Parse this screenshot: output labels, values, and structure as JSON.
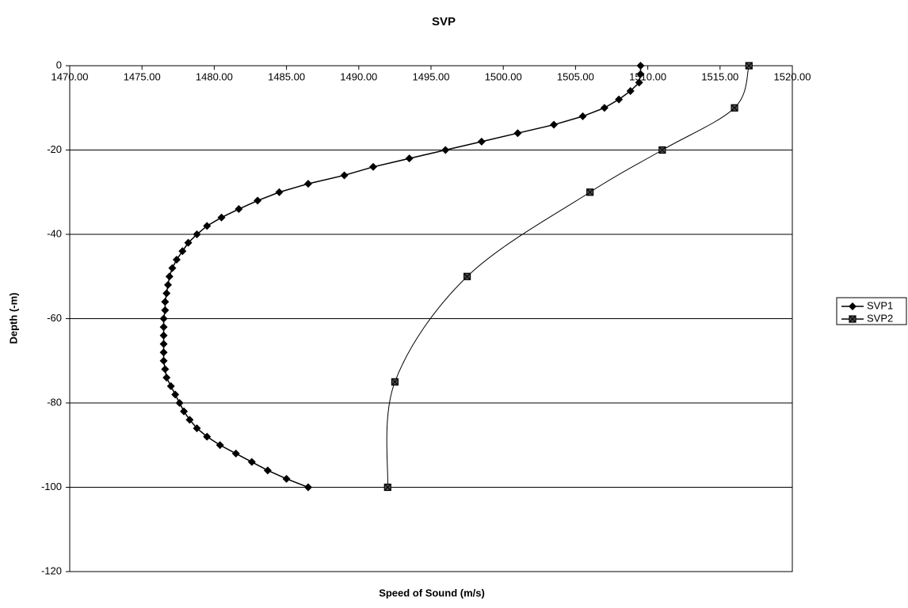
{
  "chart_data": {
    "type": "line",
    "title": "SVP",
    "x_label": "Speed of Sound (m/s)",
    "y_label": "Depth (-m)",
    "xlim": [
      1470,
      1520
    ],
    "xticks": [
      {
        "value": 1470,
        "label": "1470.00"
      },
      {
        "value": 1475,
        "label": "1475.00"
      },
      {
        "value": 1480,
        "label": "1480.00"
      },
      {
        "value": 1485,
        "label": "1485.00"
      },
      {
        "value": 1490,
        "label": "1490.00"
      },
      {
        "value": 1495,
        "label": "1495.00"
      },
      {
        "value": 1500,
        "label": "1500.00"
      },
      {
        "value": 1505,
        "label": "1505.00"
      },
      {
        "value": 1510,
        "label": "1510.00"
      },
      {
        "value": 1515,
        "label": "1515.00"
      },
      {
        "value": 1520,
        "label": "1520.00"
      }
    ],
    "ylim": [
      -120,
      0
    ],
    "yticks": [
      0,
      -20,
      -40,
      -60,
      -80,
      -100,
      -120
    ],
    "grid": true,
    "legend": "right",
    "series": [
      {
        "name": "SVP1",
        "color": "#000000",
        "marker": "diamond",
        "smooth": false,
        "x": [
          1509.5,
          1509.5,
          1509.4,
          1508.8,
          1508.0,
          1507.0,
          1505.5,
          1503.5,
          1501.0,
          1498.5,
          1496.0,
          1493.5,
          1491.0,
          1489.0,
          1486.5,
          1484.5,
          1483.0,
          1481.7,
          1480.5,
          1479.5,
          1478.8,
          1478.2,
          1477.8,
          1477.4,
          1477.1,
          1476.9,
          1476.8,
          1476.7,
          1476.6,
          1476.6,
          1476.5,
          1476.5,
          1476.5,
          1476.5,
          1476.5,
          1476.5,
          1476.6,
          1476.7,
          1477.0,
          1477.3,
          1477.6,
          1477.9,
          1478.3,
          1478.8,
          1479.5,
          1480.4,
          1481.5,
          1482.6,
          1483.7,
          1485.0,
          1486.5
        ],
        "values": [
          0,
          -2,
          -4,
          -6,
          -8,
          -10,
          -12,
          -14,
          -16,
          -18,
          -20,
          -22,
          -24,
          -26,
          -28,
          -30,
          -32,
          -34,
          -36,
          -38,
          -40,
          -42,
          -44,
          -46,
          -48,
          -50,
          -52,
          -54,
          -56,
          -58,
          -60,
          -62,
          -64,
          -66,
          -68,
          -70,
          -72,
          -74,
          -76,
          -78,
          -80,
          -82,
          -84,
          -86,
          -88,
          -90,
          -92,
          -94,
          -96,
          -98,
          -100
        ]
      },
      {
        "name": "SVP2",
        "color": "#000000",
        "marker": "square-x",
        "smooth": true,
        "x": [
          1517,
          1516,
          1511,
          1506,
          1497.5,
          1492.5,
          1492
        ],
        "values": [
          0,
          -10,
          -20,
          -30,
          -50,
          -75,
          -100
        ]
      }
    ]
  }
}
